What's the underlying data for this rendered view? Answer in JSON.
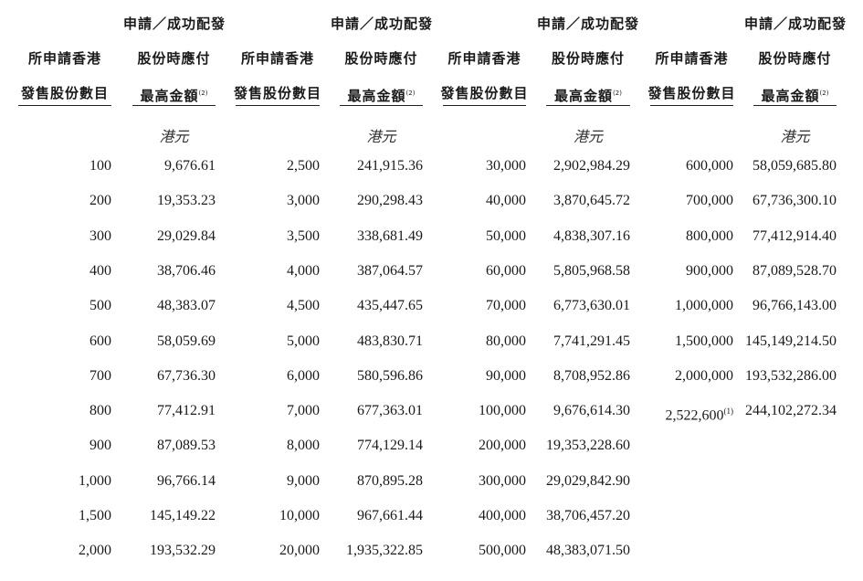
{
  "header": {
    "shares_col": {
      "line1": "所申請香港",
      "line2": "發售股份數目"
    },
    "amount_col": {
      "line1": "申請／成功配發",
      "line2": "股份時應付",
      "line3": "最高金額",
      "note": "(2)"
    },
    "currency": "港元"
  },
  "groups": [
    {
      "rows": [
        [
          "100",
          "9,676.61"
        ],
        [
          "200",
          "19,353.23"
        ],
        [
          "300",
          "29,029.84"
        ],
        [
          "400",
          "38,706.46"
        ],
        [
          "500",
          "48,383.07"
        ],
        [
          "600",
          "58,059.69"
        ],
        [
          "700",
          "67,736.30"
        ],
        [
          "800",
          "77,412.91"
        ],
        [
          "900",
          "87,089.53"
        ],
        [
          "1,000",
          "96,766.14"
        ],
        [
          "1,500",
          "145,149.22"
        ],
        [
          "2,000",
          "193,532.29"
        ]
      ]
    },
    {
      "rows": [
        [
          "2,500",
          "241,915.36"
        ],
        [
          "3,000",
          "290,298.43"
        ],
        [
          "3,500",
          "338,681.49"
        ],
        [
          "4,000",
          "387,064.57"
        ],
        [
          "4,500",
          "435,447.65"
        ],
        [
          "5,000",
          "483,830.71"
        ],
        [
          "6,000",
          "580,596.86"
        ],
        [
          "7,000",
          "677,363.01"
        ],
        [
          "8,000",
          "774,129.14"
        ],
        [
          "9,000",
          "870,895.28"
        ],
        [
          "10,000",
          "967,661.44"
        ],
        [
          "20,000",
          "1,935,322.85"
        ]
      ]
    },
    {
      "rows": [
        [
          "30,000",
          "2,902,984.29"
        ],
        [
          "40,000",
          "3,870,645.72"
        ],
        [
          "50,000",
          "4,838,307.16"
        ],
        [
          "60,000",
          "5,805,968.58"
        ],
        [
          "70,000",
          "6,773,630.01"
        ],
        [
          "80,000",
          "7,741,291.45"
        ],
        [
          "90,000",
          "8,708,952.86"
        ],
        [
          "100,000",
          "9,676,614.30"
        ],
        [
          "200,000",
          "19,353,228.60"
        ],
        [
          "300,000",
          "29,029,842.90"
        ],
        [
          "400,000",
          "38,706,457.20"
        ],
        [
          "500,000",
          "48,383,071.50"
        ]
      ]
    },
    {
      "rows": [
        [
          "600,000",
          "58,059,685.80"
        ],
        [
          "700,000",
          "67,736,300.10"
        ],
        [
          "800,000",
          "77,412,914.40"
        ],
        [
          "900,000",
          "87,089,528.70"
        ],
        [
          "1,000,000",
          "96,766,143.00"
        ],
        [
          "1,500,000",
          "145,149,214.50"
        ],
        [
          "2,000,000",
          "193,532,286.00"
        ],
        [
          "2,522,600",
          "244,102,272.34"
        ]
      ]
    }
  ],
  "footnotes": {
    "last_row_share_note": "(1)"
  }
}
